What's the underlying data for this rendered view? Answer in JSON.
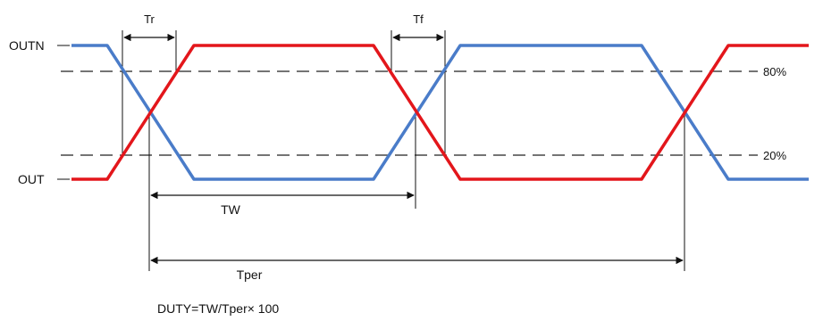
{
  "signals": {
    "outn": {
      "label": "OUTN",
      "color": "#4a7cc9"
    },
    "out": {
      "label": "OUT",
      "color": "#e3161b"
    }
  },
  "thresholds": {
    "high": "80%",
    "low": "20%"
  },
  "timing": {
    "rise": "Tr",
    "fall": "Tf",
    "width": "TW",
    "period": "Tper"
  },
  "formula": "DUTY=TW/Tper× 100",
  "colors": {
    "dashed_line": "#222222",
    "marker": "#111111"
  }
}
